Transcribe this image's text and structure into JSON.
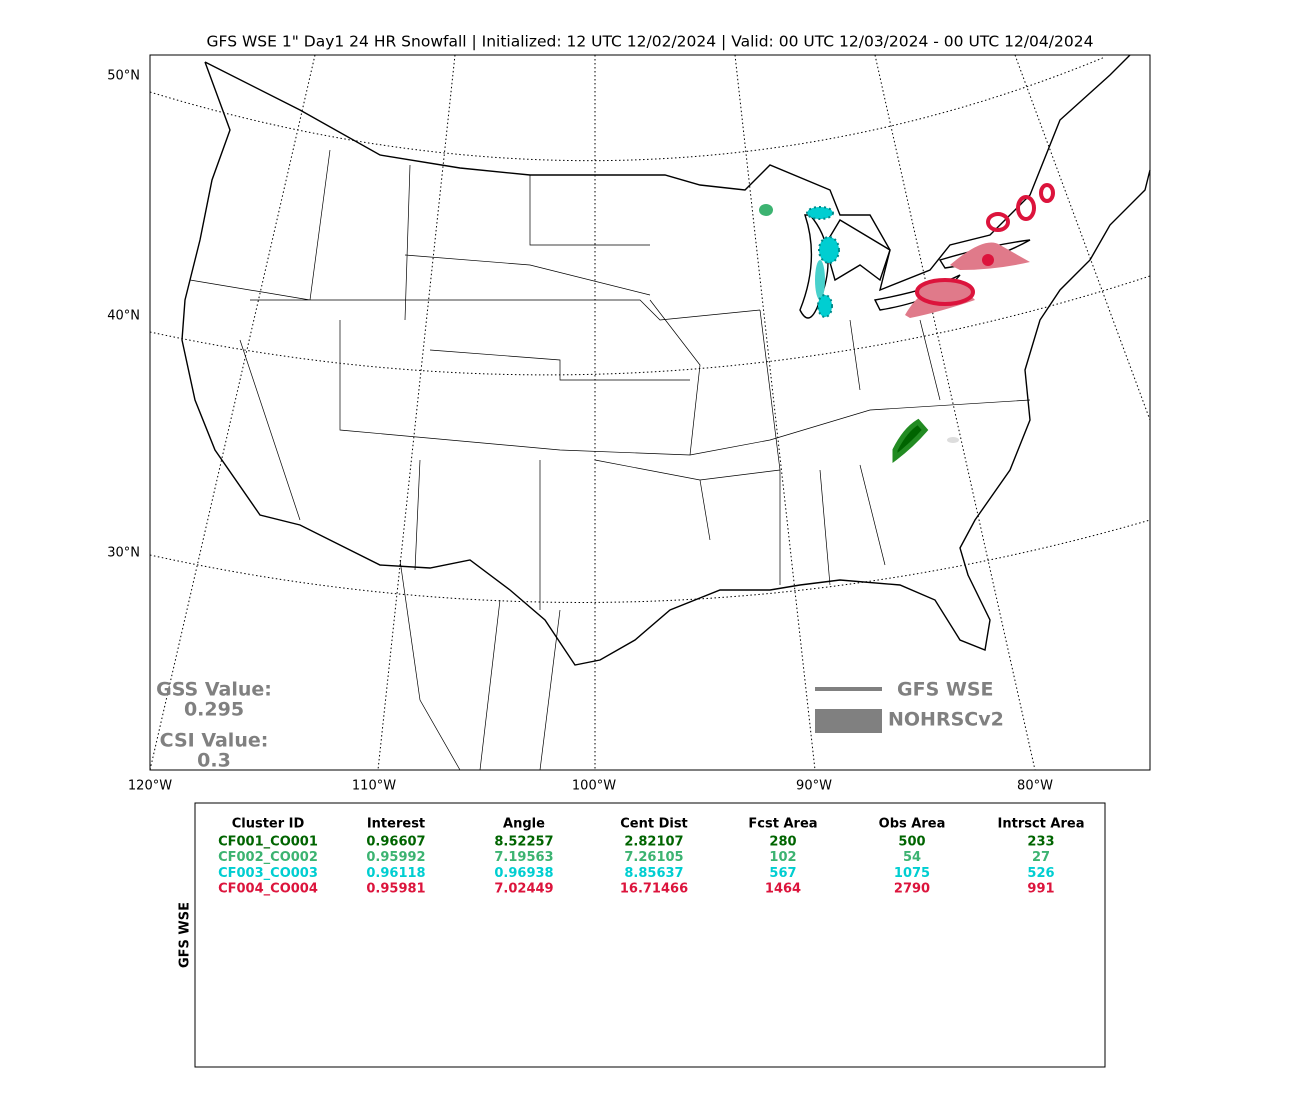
{
  "title": "GFS WSE 1\" Day1 24 HR Snowfall | Initialized: 12 UTC 12/02/2024 | Valid: 00 UTC 12/03/2024 - 00 UTC 12/04/2024",
  "map": {
    "lat_labels": [
      "50°N",
      "40°N",
      "30°N"
    ],
    "lon_labels": [
      "120°W",
      "110°W",
      "100°W",
      "90°W",
      "80°W"
    ]
  },
  "scores": {
    "gss_label": "GSS Value:",
    "gss_value": "0.295",
    "csi_label": "CSI Value:",
    "csi_value": "0.3"
  },
  "legend": {
    "line_label": "GFS WSE",
    "area_label": "NOHRSCv2"
  },
  "table": {
    "side_label": "GFS WSE",
    "header": [
      "Cluster ID",
      "Interest",
      "Angle",
      "Cent Dist",
      "Fcst Area",
      "Obs Area",
      "Intrsct Area"
    ],
    "rows": [
      {
        "color": "#006400",
        "cells": [
          "CF001_CO001",
          "0.96607",
          "8.52257",
          "2.82107",
          "280",
          "500",
          "233"
        ]
      },
      {
        "color": "#3cb371",
        "cells": [
          "CF002_CO002",
          "0.95992",
          "7.19563",
          "7.26105",
          "102",
          "54",
          "27"
        ]
      },
      {
        "color": "#00ced1",
        "cells": [
          "CF003_CO003",
          "0.96118",
          "0.96938",
          "8.85637",
          "567",
          "1075",
          "526"
        ]
      },
      {
        "color": "#dc143c",
        "cells": [
          "CF004_CO004",
          "0.95981",
          "7.02449",
          "16.71466",
          "1464",
          "2790",
          "991"
        ]
      }
    ]
  }
}
